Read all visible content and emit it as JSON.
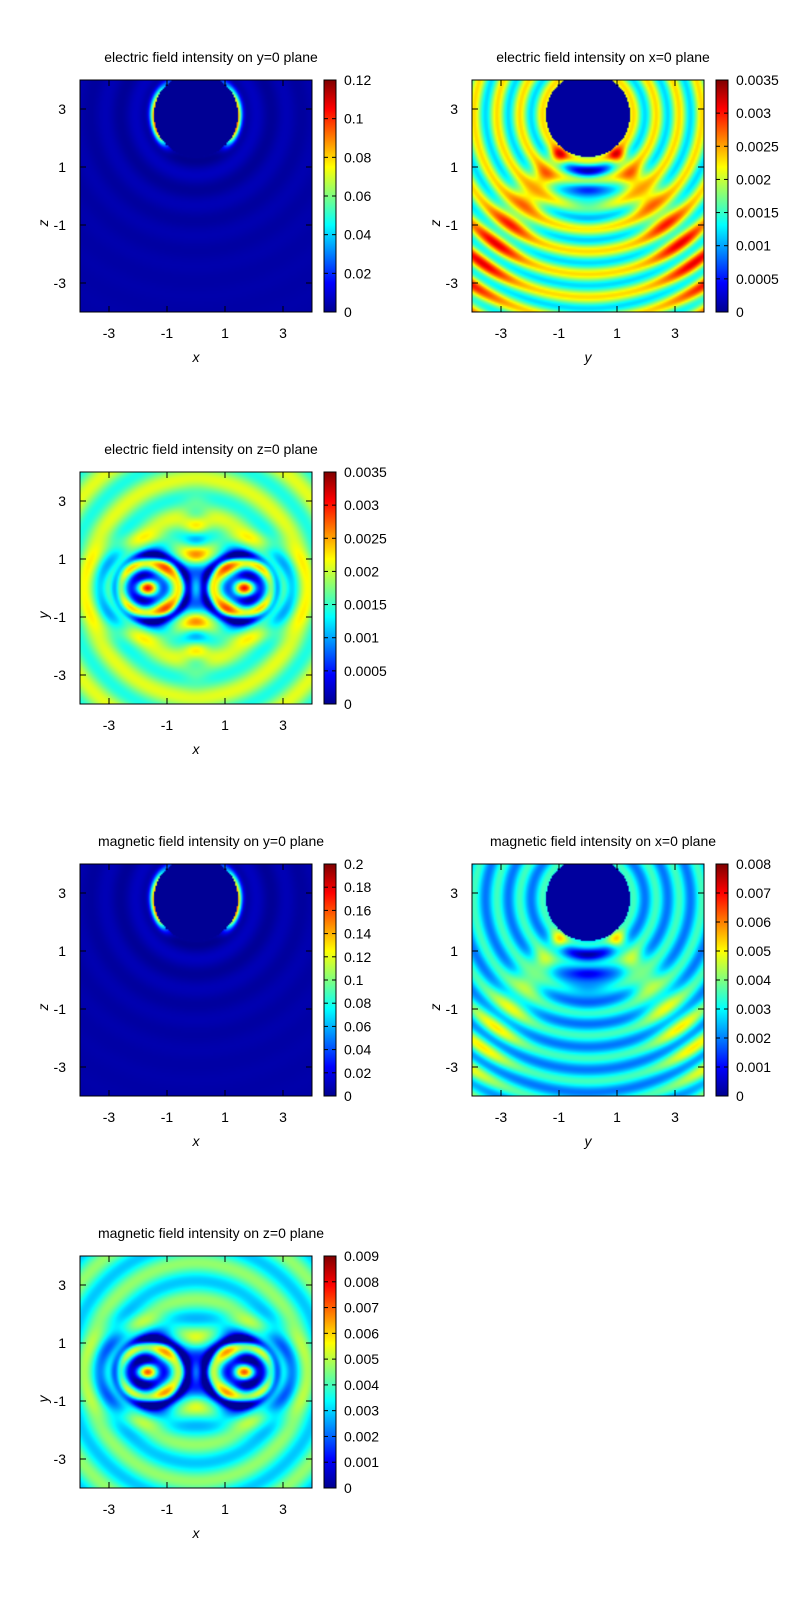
{
  "chart_data": [
    {
      "type": "heatmap",
      "title": "electric field intensity on y=0 plane",
      "xlabel": "x",
      "ylabel": "z",
      "xticks": [
        "-3",
        "-1",
        "1",
        "3"
      ],
      "yticks": [
        "3",
        "1",
        "-1",
        "-3"
      ],
      "xlim": [
        -4,
        4
      ],
      "ylim": [
        -4,
        4
      ],
      "colorbar": {
        "ticks": [
          "0.12",
          "0.1",
          "0.08",
          "0.06",
          "0.04",
          "0.02",
          "0"
        ],
        "range": [
          0,
          0.12
        ]
      },
      "colormap": "jet",
      "pattern": "side"
    },
    {
      "type": "heatmap",
      "title": "electric field intensity on x=0 plane",
      "xlabel": "y",
      "ylabel": "z",
      "xticks": [
        "-3",
        "-1",
        "1",
        "3"
      ],
      "yticks": [
        "3",
        "1",
        "-1",
        "-3"
      ],
      "xlim": [
        -4,
        4
      ],
      "ylim": [
        -4,
        4
      ],
      "colorbar": {
        "ticks": [
          "0.0035",
          "0.003",
          "0.0025",
          "0.002",
          "0.0015",
          "0.001",
          "0.0005",
          "0"
        ],
        "range": [
          0,
          0.0035
        ]
      },
      "colormap": "jet",
      "pattern": "front"
    },
    {
      "type": "heatmap",
      "title": "electric field intensity on z=0 plane",
      "xlabel": "x",
      "ylabel": "y",
      "xticks": [
        "-3",
        "-1",
        "1",
        "3"
      ],
      "yticks": [
        "3",
        "1",
        "-1",
        "-3"
      ],
      "xlim": [
        -4,
        4
      ],
      "ylim": [
        -4,
        4
      ],
      "colorbar": {
        "ticks": [
          "0.0035",
          "0.003",
          "0.0025",
          "0.002",
          "0.0015",
          "0.001",
          "0.0005",
          "0"
        ],
        "range": [
          0,
          0.0035
        ]
      },
      "colormap": "jet",
      "pattern": "top-e"
    },
    {
      "type": "heatmap",
      "title": "magnetic field intensity on y=0 plane",
      "xlabel": "x",
      "ylabel": "z",
      "xticks": [
        "-3",
        "-1",
        "1",
        "3"
      ],
      "yticks": [
        "3",
        "1",
        "-1",
        "-3"
      ],
      "xlim": [
        -4,
        4
      ],
      "ylim": [
        -4,
        4
      ],
      "colorbar": {
        "ticks": [
          "0.2",
          "0.18",
          "0.16",
          "0.14",
          "0.12",
          "0.1",
          "0.08",
          "0.06",
          "0.04",
          "0.02",
          "0"
        ],
        "range": [
          0,
          0.2
        ]
      },
      "colormap": "jet",
      "pattern": "side"
    },
    {
      "type": "heatmap",
      "title": "magnetic field intensity on x=0 plane",
      "xlabel": "y",
      "ylabel": "z",
      "xticks": [
        "-3",
        "-1",
        "1",
        "3"
      ],
      "yticks": [
        "3",
        "1",
        "-1",
        "-3"
      ],
      "xlim": [
        -4,
        4
      ],
      "ylim": [
        -4,
        4
      ],
      "colorbar": {
        "ticks": [
          "0.008",
          "0.007",
          "0.006",
          "0.005",
          "0.004",
          "0.003",
          "0.002",
          "0.001",
          "0"
        ],
        "range": [
          0,
          0.008
        ]
      },
      "colormap": "jet",
      "pattern": "front-h"
    },
    {
      "type": "heatmap",
      "title": "magnetic field intensity on z=0 plane",
      "xlabel": "x",
      "ylabel": "y",
      "xticks": [
        "-3",
        "-1",
        "1",
        "3"
      ],
      "yticks": [
        "3",
        "1",
        "-1",
        "-3"
      ],
      "xlim": [
        -4,
        4
      ],
      "ylim": [
        -4,
        4
      ],
      "colorbar": {
        "ticks": [
          "0.009",
          "0.008",
          "0.007",
          "0.006",
          "0.005",
          "0.004",
          "0.003",
          "0.002",
          "0.001",
          "0"
        ],
        "range": [
          0,
          0.009
        ]
      },
      "colormap": "jet",
      "pattern": "top-h"
    }
  ]
}
